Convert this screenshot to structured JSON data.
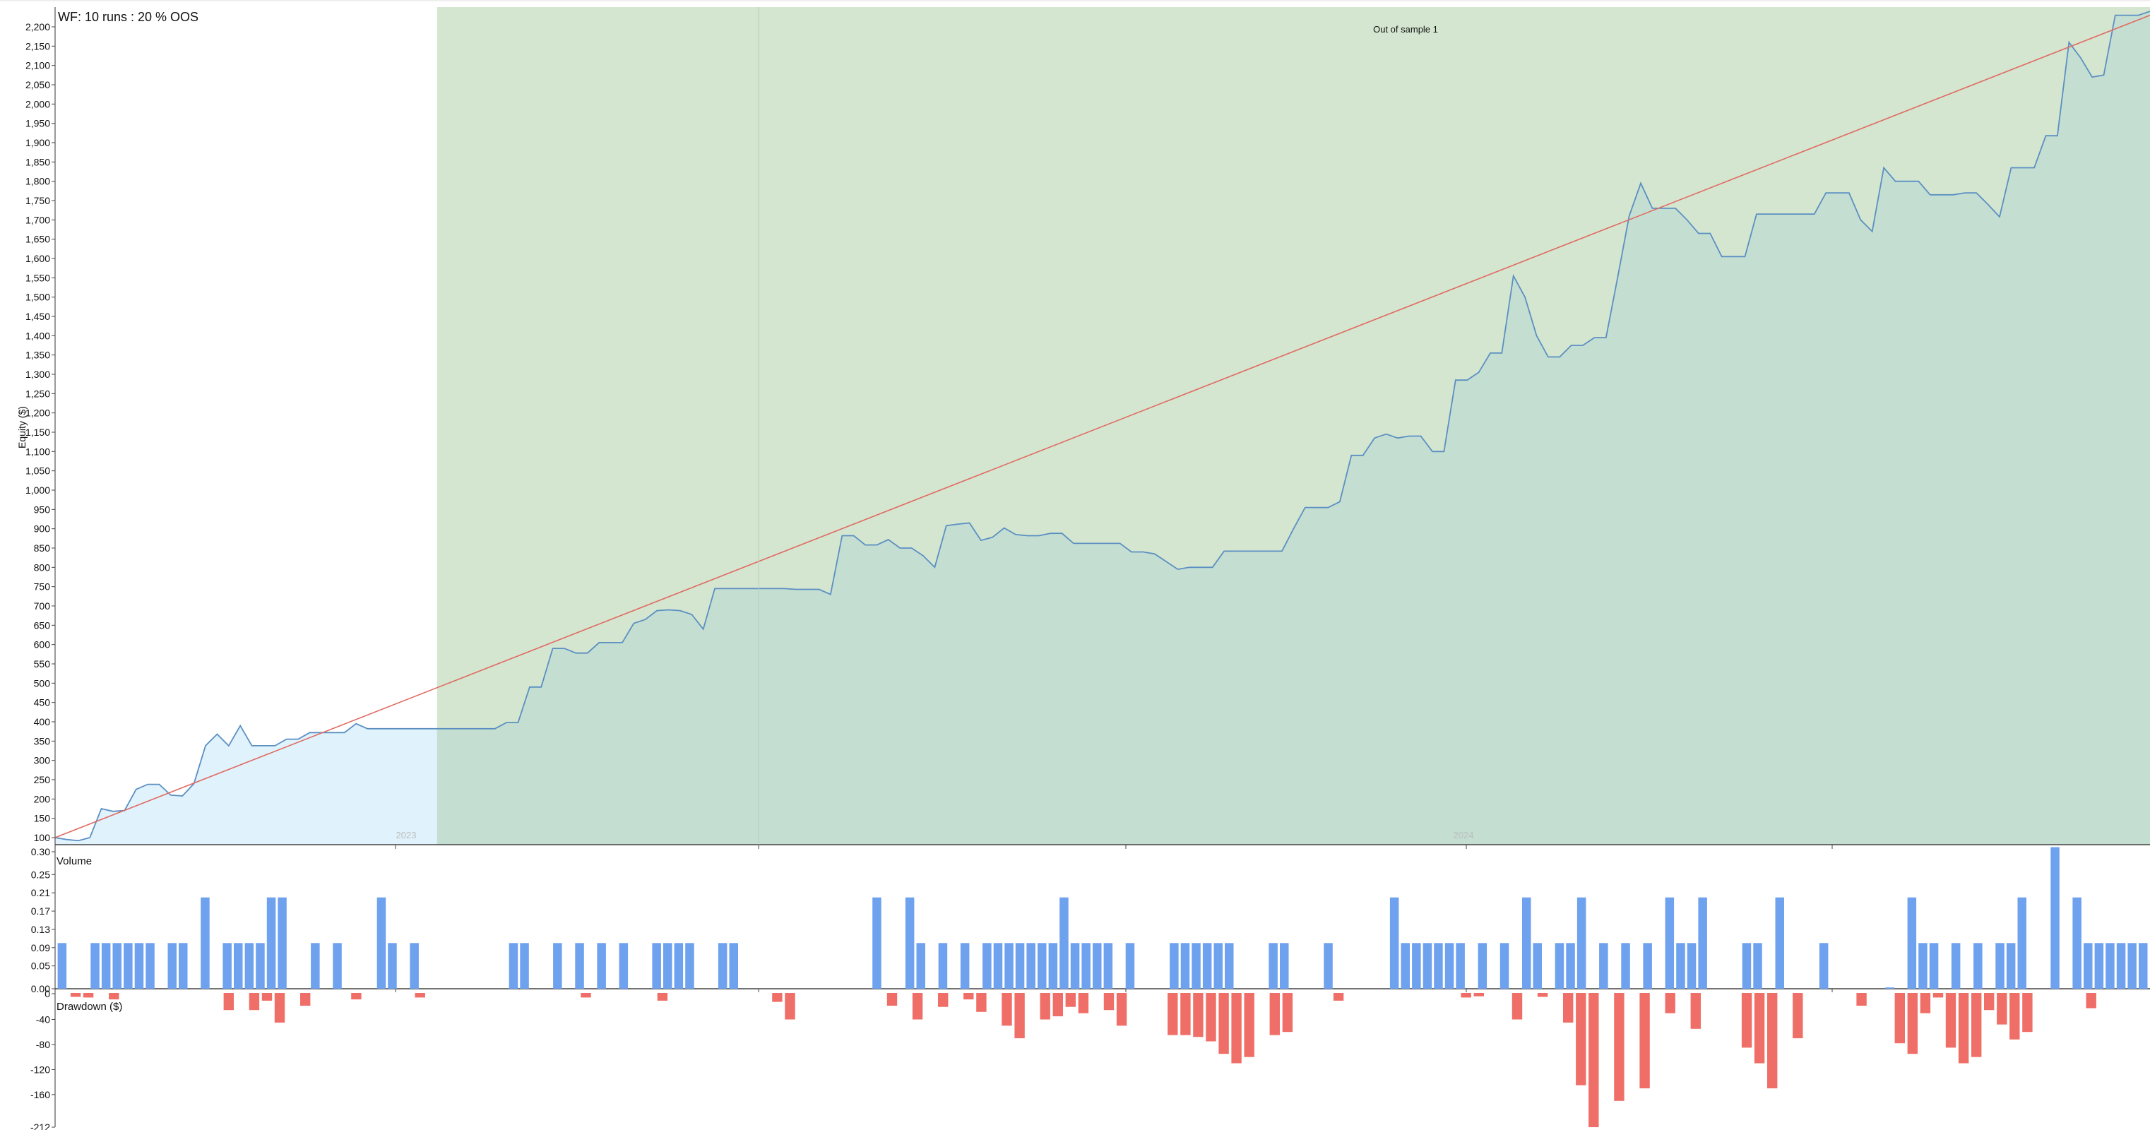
{
  "chart_data": {
    "type": "area",
    "title": "WF: 10 runs : 20 % OOS",
    "oos_label": "Out of sample 1",
    "x_labels": [
      "2023",
      "2024"
    ],
    "colors": {
      "equity_line": "#5b8fc2",
      "in_sample_fill": "#e0f2fb",
      "oos_band": "#d4e6d0",
      "oos_fill": "#c4dfd2",
      "trend_line": "#e06a62",
      "volume_bar": "#6ea1ee",
      "drawdown_bar": "#ef6f68"
    },
    "equity": {
      "ylabel": "Equity ($)",
      "ylim": [
        100,
        2200
      ],
      "yticks": [
        "100",
        "150",
        "200",
        "250",
        "300",
        "350",
        "400",
        "450",
        "500",
        "550",
        "600",
        "650",
        "700",
        "750",
        "800",
        "850",
        "900",
        "950",
        "1,000",
        "1,050",
        "1,100",
        "1,150",
        "1,200",
        "1,250",
        "1,300",
        "1,350",
        "1,400",
        "1,450",
        "1,500",
        "1,550",
        "1,600",
        "1,650",
        "1,700",
        "1,750",
        "1,800",
        "1,850",
        "1,900",
        "1,950",
        "2,000",
        "2,050",
        "2,100",
        "2,150",
        "2,200"
      ],
      "oos_start_index": 33,
      "trend_line": {
        "start": 100,
        "end": 2230
      },
      "values": [
        100,
        95,
        92,
        100,
        175,
        168,
        170,
        225,
        238,
        238,
        210,
        208,
        240,
        338,
        368,
        338,
        390,
        338,
        338,
        338,
        355,
        355,
        372,
        372,
        372,
        372,
        395,
        382,
        382,
        382,
        382,
        382,
        382,
        382,
        382,
        382,
        382,
        382,
        382,
        398,
        398,
        490,
        490,
        590,
        590,
        578,
        578,
        605,
        605,
        605,
        655,
        665,
        688,
        690,
        688,
        678,
        640,
        745,
        745,
        745,
        745,
        745,
        745,
        745,
        743,
        743,
        743,
        730,
        882,
        882,
        858,
        858,
        872,
        850,
        850,
        830,
        800,
        908,
        912,
        915,
        870,
        878,
        902,
        885,
        882,
        882,
        888,
        888,
        862,
        862,
        862,
        862,
        862,
        840,
        840,
        835,
        815,
        795,
        800,
        800,
        800,
        842,
        842,
        842,
        842,
        842,
        842,
        900,
        955,
        955,
        955,
        970,
        1090,
        1090,
        1135,
        1145,
        1135,
        1140,
        1140,
        1100,
        1100,
        1285,
        1285,
        1305,
        1355,
        1355,
        1555,
        1500,
        1400,
        1345,
        1345,
        1375,
        1375,
        1395,
        1395,
        1550,
        1710,
        1795,
        1730,
        1730,
        1730,
        1700,
        1665,
        1665,
        1605,
        1605,
        1605,
        1715,
        1715,
        1715,
        1715,
        1715,
        1715,
        1770,
        1770,
        1770,
        1700,
        1670,
        1835,
        1800,
        1800,
        1800,
        1765,
        1765,
        1765,
        1770,
        1770,
        1740,
        1708,
        1835,
        1835,
        1835,
        1918,
        1918,
        2160,
        2120,
        2070,
        2075,
        2230,
        2230,
        2230,
        2240
      ]
    },
    "volume": {
      "label": "Volume",
      "ylim": [
        0,
        0.3
      ],
      "yticks": [
        "0.00",
        "0.05",
        "0.09",
        "0.13",
        "0.17",
        "0.21",
        "0.25",
        "0.30"
      ],
      "values": [
        0.1,
        0,
        0,
        0.1,
        0.1,
        0.1,
        0.1,
        0.1,
        0.1,
        0,
        0.1,
        0.1,
        0,
        0.2,
        0,
        0.1,
        0.1,
        0.1,
        0.1,
        0.2,
        0.2,
        0,
        0,
        0.1,
        0,
        0.1,
        0,
        0,
        0,
        0.2,
        0.1,
        0,
        0.1,
        0,
        0,
        0,
        0,
        0,
        0,
        0,
        0,
        0.1,
        0.1,
        0,
        0,
        0.1,
        0,
        0.1,
        0,
        0.1,
        0,
        0.1,
        0,
        0,
        0.1,
        0.1,
        0.1,
        0.1,
        0,
        0,
        0.1,
        0.1,
        0,
        0,
        0,
        0,
        0,
        0,
        0,
        0,
        0,
        0,
        0,
        0,
        0.2,
        0,
        0,
        0.2,
        0.1,
        0,
        0.1,
        0,
        0.1,
        0,
        0.1,
        0.1,
        0.1,
        0.1,
        0.1,
        0.1,
        0.1,
        0.2,
        0.1,
        0.1,
        0.1,
        0.1,
        0,
        0.1,
        0,
        0,
        0,
        0.1,
        0.1,
        0.1,
        0.1,
        0.1,
        0.1,
        0,
        0,
        0,
        0.1,
        0.1,
        0,
        0,
        0,
        0.1,
        0,
        0,
        0,
        0,
        0,
        0.2,
        0.1,
        0.1,
        0.1,
        0.1,
        0.1,
        0.1,
        0,
        0.1,
        0,
        0.1,
        0,
        0.2,
        0.1,
        0,
        0.1,
        0.1,
        0.2,
        0,
        0.1,
        0,
        0.1,
        0,
        0.1,
        0,
        0.2,
        0.1,
        0.1,
        0.2,
        0,
        0,
        0,
        0.1,
        0.1,
        0,
        0.2,
        0,
        0,
        0,
        0.1,
        0,
        0,
        0,
        0,
        0,
        0.003,
        0,
        0.2,
        0.1,
        0.1,
        0,
        0.1,
        0,
        0.1,
        0,
        0.1,
        0.1,
        0.2,
        0,
        0,
        0.31,
        0,
        0.2,
        0.1,
        0.1,
        0.1,
        0.1,
        0.1,
        0.1
      ]
    },
    "drawdown": {
      "label": "Drawdown ($)",
      "ylim": [
        -212,
        0
      ],
      "yticks": [
        "0",
        "-40",
        "-80",
        "-120",
        "-160",
        "-212"
      ],
      "values": [
        0,
        -4,
        -5,
        0,
        -8,
        0,
        0,
        0,
        0,
        0,
        0,
        0,
        0,
        -25,
        0,
        -25,
        -10,
        -45,
        0,
        -18,
        0,
        0,
        0,
        -8,
        0,
        0,
        0,
        0,
        -5,
        0,
        0,
        0,
        0,
        0,
        0,
        0,
        0,
        0,
        0,
        0,
        0,
        -5,
        0,
        0,
        0,
        0,
        0,
        -10,
        0,
        0,
        0,
        0,
        0,
        0,
        0,
        0,
        -12,
        -40,
        0,
        0,
        0,
        0,
        0,
        0,
        0,
        -18,
        0,
        -40,
        0,
        -20,
        0,
        -8,
        -28,
        0,
        -50,
        -70,
        0,
        -40,
        -35,
        -20,
        -30,
        0,
        -25,
        -50,
        0,
        0,
        0,
        -65,
        -65,
        -68,
        -75,
        -95,
        -110,
        -100,
        0,
        -65,
        -60,
        0,
        0,
        0,
        -10,
        0,
        0,
        0,
        0,
        0,
        0,
        0,
        0,
        0,
        -5,
        -3,
        0,
        0,
        -40,
        0,
        -4,
        0,
        -45,
        -145,
        -212,
        0,
        -170,
        0,
        -150,
        0,
        -30,
        0,
        -55,
        0,
        0,
        0,
        -85,
        -110,
        -150,
        0,
        -70,
        0,
        0,
        0,
        0,
        -18,
        0,
        0,
        -78,
        -95,
        -30,
        -5,
        -85,
        -110,
        -100,
        -25,
        -48,
        -72,
        -60,
        0,
        0,
        0,
        0,
        -22,
        0,
        0,
        0,
        0
      ]
    }
  }
}
